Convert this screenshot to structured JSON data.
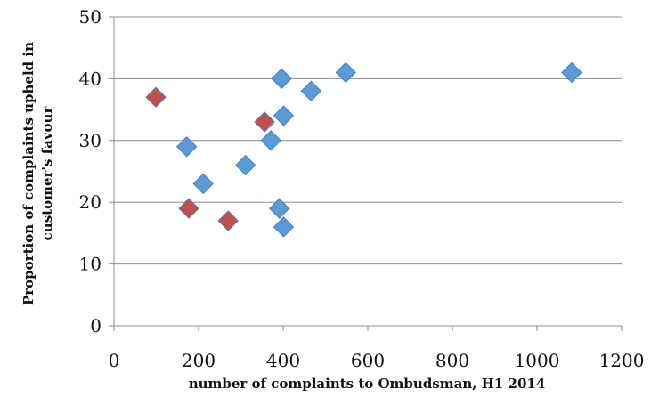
{
  "chart_data": {
    "type": "scatter",
    "title": "",
    "xlabel": "number of complaints to Ombudsman, H1 2014",
    "ylabel_line1": "Proportion of complaints upheld in",
    "ylabel_line2": "customer's favour",
    "xlim": [
      0,
      1200
    ],
    "ylim": [
      0,
      50
    ],
    "x_ticks": [
      0,
      200,
      400,
      600,
      800,
      1000,
      1200
    ],
    "y_ticks": [
      0,
      10,
      20,
      30,
      40,
      50
    ],
    "grid": "horizontal",
    "marker": "diamond",
    "colors": {
      "blue": "#5b9bd5",
      "red": "#c0504d",
      "edge": "#4a7ebb",
      "grid": "#8c8c8c"
    },
    "series": [
      {
        "color": "blue",
        "points": [
          {
            "x": 548,
            "y": 41
          },
          {
            "x": 1082,
            "y": 41
          },
          {
            "x": 396,
            "y": 40
          },
          {
            "x": 466,
            "y": 38
          },
          {
            "x": 401,
            "y": 34
          },
          {
            "x": 371,
            "y": 30
          },
          {
            "x": 172,
            "y": 29
          },
          {
            "x": 311,
            "y": 26
          },
          {
            "x": 211,
            "y": 23
          },
          {
            "x": 391,
            "y": 19
          },
          {
            "x": 401,
            "y": 16
          }
        ]
      },
      {
        "color": "red",
        "points": [
          {
            "x": 99,
            "y": 37
          },
          {
            "x": 356,
            "y": 33
          },
          {
            "x": 177,
            "y": 19
          },
          {
            "x": 270,
            "y": 17
          }
        ]
      }
    ]
  }
}
